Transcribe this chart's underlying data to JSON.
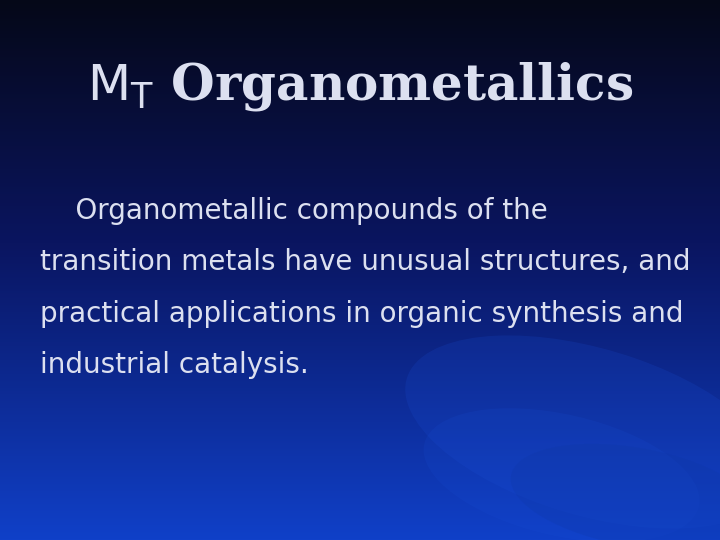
{
  "title_M": "M",
  "title_T": "T",
  "title_rest": " Organometallics",
  "body_lines": [
    "    Organometallic compounds of the",
    "transition metals have unusual structures, and",
    "practical applications in organic synthesis and",
    "industrial catalysis."
  ],
  "bg_top": "#050818",
  "bg_mid": "#0a1560",
  "bg_bottom": "#1040c8",
  "text_color": "#dce0f0",
  "title_fontsize": 36,
  "body_fontsize": 20,
  "fig_width": 7.2,
  "fig_height": 5.4,
  "dpi": 100
}
